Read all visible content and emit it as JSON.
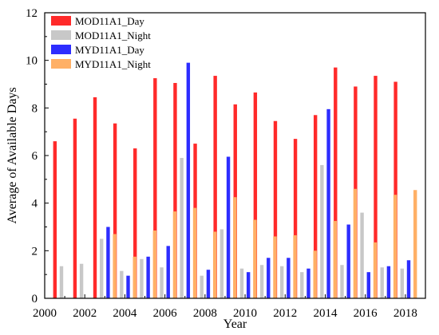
{
  "chart_data": {
    "type": "bar",
    "xlabel": "Year",
    "ylabel": "Average of  Available Days",
    "xlim": [
      2000,
      2019
    ],
    "ylim": [
      0,
      12
    ],
    "x_ticks": [
      2000,
      2002,
      2004,
      2006,
      2008,
      2010,
      2012,
      2014,
      2016,
      2018
    ],
    "y_ticks": [
      0,
      2,
      4,
      6,
      8,
      10,
      12
    ],
    "legend_position": "top-left",
    "grid": false,
    "series": [
      {
        "name": "MOD11A1_Day",
        "color": "#ff2a2a",
        "points": [
          [
            2001,
            6.6
          ],
          [
            2002,
            7.55
          ],
          [
            2003,
            8.45
          ],
          [
            2004,
            7.35
          ],
          [
            2005,
            6.3
          ],
          [
            2006,
            9.25
          ],
          [
            2007,
            9.05
          ],
          [
            2008,
            6.5
          ],
          [
            2009,
            9.35
          ],
          [
            2010,
            8.15
          ],
          [
            2011,
            8.65
          ],
          [
            2012,
            7.45
          ],
          [
            2013,
            6.7
          ],
          [
            2014,
            7.7
          ],
          [
            2015,
            9.7
          ],
          [
            2016,
            8.9
          ],
          [
            2017,
            9.35
          ],
          [
            2018,
            9.1
          ]
        ]
      },
      {
        "name": "MOD11A1_Night",
        "color": "#c8c8c8",
        "points": [
          [
            2001,
            1.35
          ],
          [
            2002,
            1.45
          ],
          [
            2003,
            2.5
          ],
          [
            2004,
            1.15
          ],
          [
            2005,
            1.65
          ],
          [
            2006,
            1.3
          ],
          [
            2007,
            5.9
          ],
          [
            2008,
            0.95
          ],
          [
            2009,
            2.9
          ],
          [
            2010,
            1.25
          ],
          [
            2011,
            1.4
          ],
          [
            2012,
            1.35
          ],
          [
            2013,
            1.1
          ],
          [
            2014,
            5.6
          ],
          [
            2015,
            1.4
          ],
          [
            2016,
            3.6
          ],
          [
            2017,
            1.3
          ],
          [
            2018,
            1.25
          ]
        ]
      },
      {
        "name": "MYD11A1_Day",
        "color": "#2d2dff",
        "points": [
          [
            2003,
            3.0
          ],
          [
            2004,
            0.95
          ],
          [
            2005,
            1.75
          ],
          [
            2006,
            2.2
          ],
          [
            2007,
            9.9
          ],
          [
            2008,
            1.2
          ],
          [
            2009,
            5.95
          ],
          [
            2010,
            1.1
          ],
          [
            2011,
            1.7
          ],
          [
            2012,
            1.7
          ],
          [
            2013,
            1.25
          ],
          [
            2014,
            7.95
          ],
          [
            2015,
            3.1
          ],
          [
            2016,
            1.1
          ],
          [
            2017,
            1.35
          ],
          [
            2018,
            1.6
          ]
        ]
      },
      {
        "name": "MYD11A1_Night",
        "color": "#ffb066",
        "points": [
          [
            2003,
            2.7
          ],
          [
            2004,
            1.75
          ],
          [
            2005,
            2.85
          ],
          [
            2006,
            3.65
          ],
          [
            2007,
            3.8
          ],
          [
            2008,
            2.8
          ],
          [
            2009,
            4.25
          ],
          [
            2010,
            3.3
          ],
          [
            2011,
            2.6
          ],
          [
            2012,
            2.65
          ],
          [
            2013,
            2.0
          ],
          [
            2014,
            3.25
          ],
          [
            2015,
            4.6
          ],
          [
            2016,
            2.35
          ],
          [
            2017,
            4.35
          ],
          [
            2018,
            4.55
          ]
        ]
      }
    ]
  }
}
